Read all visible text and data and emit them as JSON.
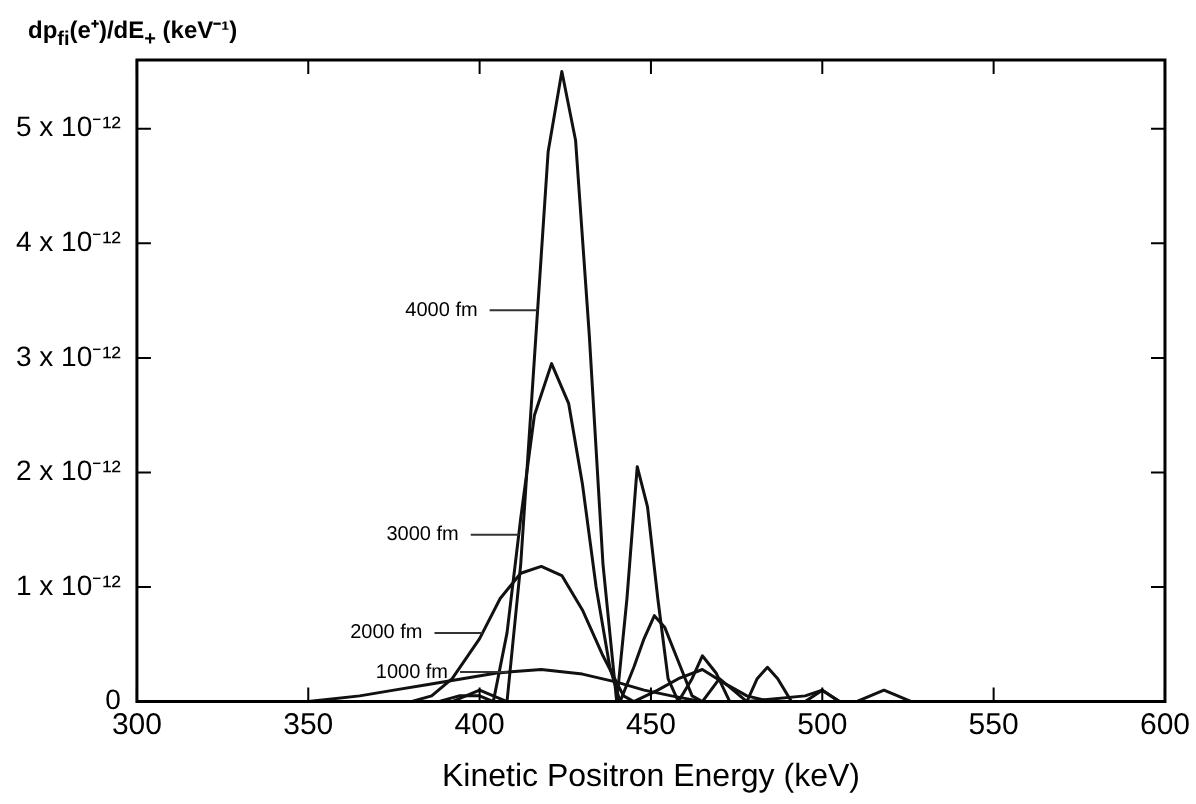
{
  "chart_data": {
    "type": "line",
    "xlabel": "Kinetic Positron Energy (keV)",
    "ylabel": "dp$_{fi}$(e⁺)/dE$_{+}$ (keV⁻¹)",
    "xlim": [
      300,
      600
    ],
    "xticks": [
      300,
      350,
      400,
      450,
      500,
      550,
      600
    ],
    "ylim": [
      0,
      5.6e-12
    ],
    "yticks": [
      0,
      {
        "value": 1e-12,
        "label": "1 x 10⁻¹²"
      },
      {
        "value": 2e-12,
        "label": "2 x 10⁻¹²"
      },
      {
        "value": 3e-12,
        "label": "3 x 10⁻¹²"
      },
      {
        "value": 4e-12,
        "label": "4 x 10⁻¹²"
      },
      {
        "value": 5e-12,
        "label": "5 x 10⁻¹²"
      }
    ],
    "grid": false,
    "legend": false,
    "marker": "none",
    "line_style": "solid",
    "series": [
      {
        "name": "4000 fm",
        "color": "#111111",
        "x": [
          392,
          396,
          400,
          404,
          408,
          412,
          416,
          420,
          424,
          428,
          432,
          436,
          440,
          443,
          446,
          449,
          452,
          455,
          458,
          462,
          465,
          469,
          473,
          478,
          481,
          484,
          487,
          491,
          495,
          500,
          505,
          510,
          514,
          518,
          522,
          526
        ],
        "values": [
          0,
          5e-14,
          1e-13,
          5e-14,
          0,
          1.2e-12,
          3e-12,
          4.8e-12,
          5.5e-12,
          4.9e-12,
          3.2e-12,
          1.2e-12,
          0,
          9e-13,
          2.05e-12,
          1.7e-12,
          9e-13,
          2e-13,
          0,
          2e-13,
          4e-13,
          2.5e-13,
          0,
          0,
          2e-13,
          3e-13,
          2e-13,
          0,
          0,
          1e-13,
          0,
          0,
          5e-14,
          1e-13,
          5e-14,
          0
        ]
      },
      {
        "name": "3000 fm",
        "color": "#111111",
        "x": [
          388,
          394,
          400,
          404,
          408,
          412,
          416,
          421,
          426,
          430,
          434,
          438,
          441,
          445,
          448,
          451,
          454,
          458,
          462,
          465,
          470,
          474,
          478,
          495,
          500,
          505
        ],
        "values": [
          0,
          5e-14,
          5e-14,
          0,
          6e-13,
          1.6e-12,
          2.5e-12,
          2.95e-12,
          2.6e-12,
          1.9e-12,
          1e-12,
          3e-13,
          0,
          3e-13,
          5.5e-13,
          7.5e-13,
          6.5e-13,
          3.5e-13,
          5e-14,
          0,
          2e-13,
          1e-13,
          0,
          5e-14,
          1e-13,
          0
        ]
      },
      {
        "name": "2000 fm",
        "color": "#111111",
        "x": [
          380,
          386,
          392,
          400,
          406,
          412,
          418,
          424,
          430,
          436,
          442,
          445,
          452,
          458,
          465,
          472,
          478,
          485
        ],
        "values": [
          0,
          5e-14,
          2e-13,
          5.5e-13,
          9e-13,
          1.12e-12,
          1.18e-12,
          1.1e-12,
          8e-13,
          4e-13,
          5e-14,
          0,
          1e-13,
          2e-13,
          2.8e-13,
          1.5e-13,
          5e-14,
          0
        ]
      },
      {
        "name": "1000 fm",
        "color": "#111111",
        "x": [
          350,
          365,
          375,
          385,
          395,
          405,
          418,
          430,
          440,
          448,
          456,
          465
        ],
        "values": [
          0,
          5e-14,
          1e-13,
          1.5e-13,
          2e-13,
          2.5e-13,
          2.8e-13,
          2.4e-13,
          1.7e-13,
          1e-13,
          5e-14,
          0
        ]
      }
    ]
  }
}
